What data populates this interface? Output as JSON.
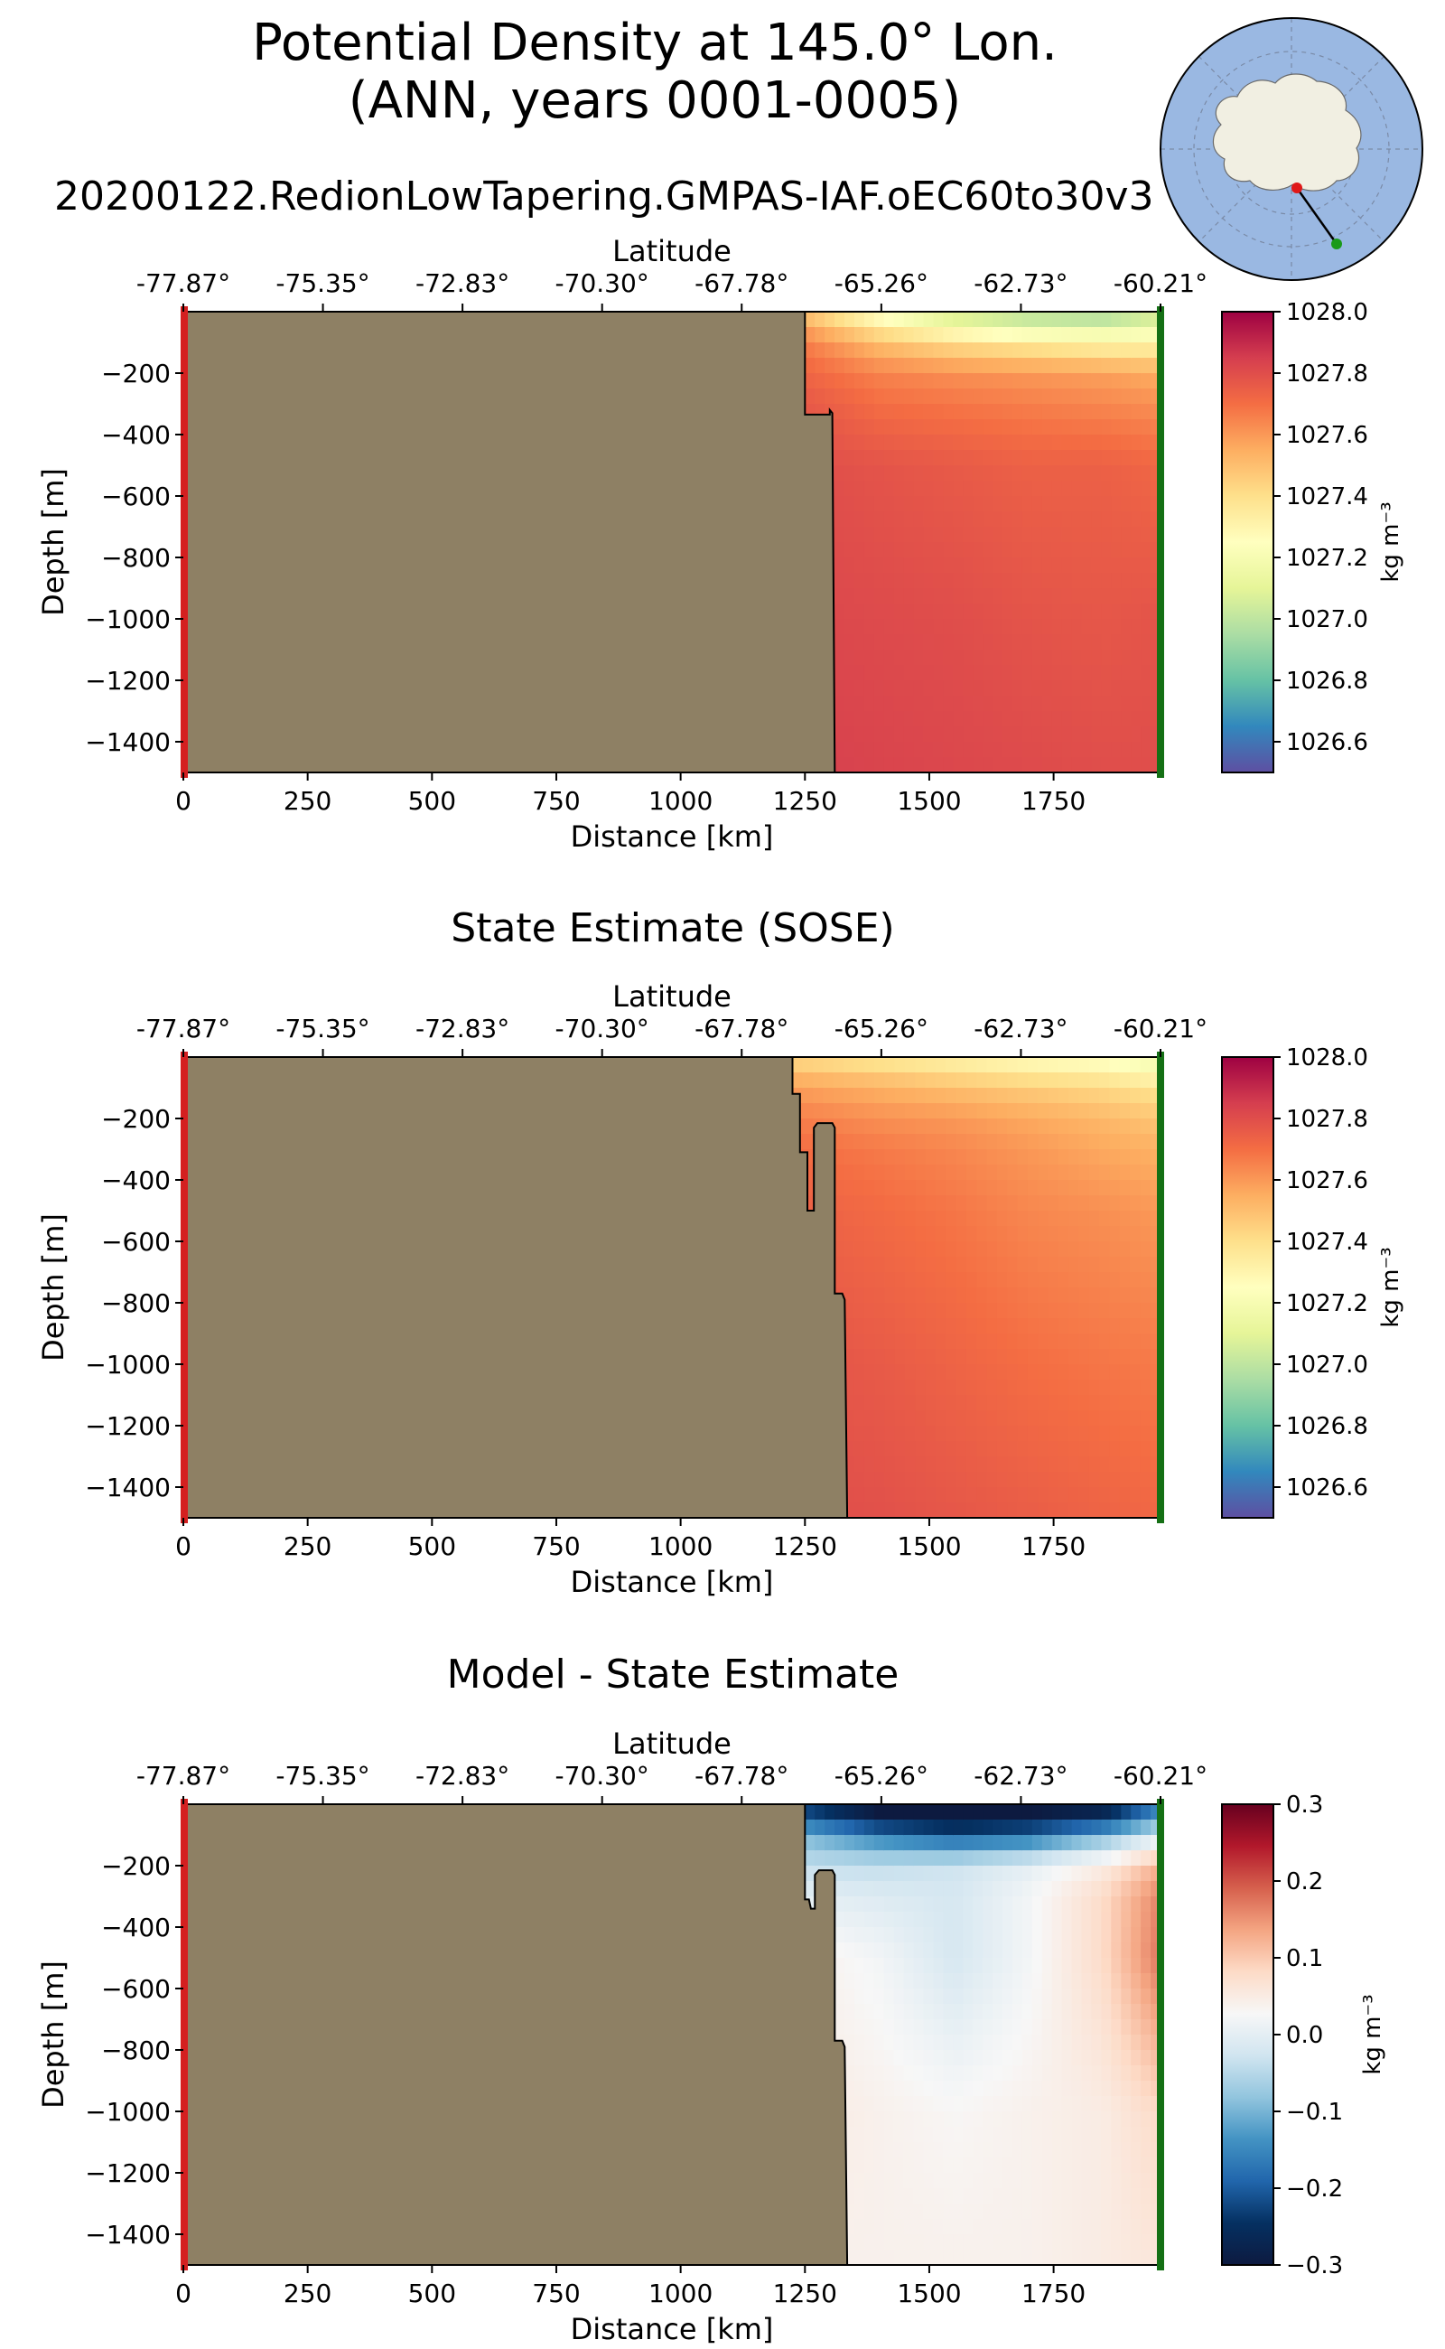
{
  "figure": {
    "title_line1": "Potential Density at 145.0° Lon.",
    "title_line2": "(ANN, years 0001-0005)",
    "run_name": "20200122.RedionLowTapering.GMPAS-IAF.oEC60to30v3"
  },
  "colors": {
    "land": "#8e8064",
    "start_marker": "#d42020",
    "end_marker": "#157015",
    "globe_ocean": "#9ab8e2",
    "globe_land": "#f1efe2"
  },
  "shared_axes": {
    "xlabel": "Distance [km]",
    "ylabel": "Depth [m]",
    "top_label": "Latitude",
    "xlim": [
      0,
      1965
    ],
    "ylim": [
      -1500,
      0
    ],
    "xticks": [
      0,
      250,
      500,
      750,
      1000,
      1250,
      1500,
      1750
    ],
    "yticks": [
      -200,
      -400,
      -600,
      -800,
      -1000,
      -1200,
      -1400
    ],
    "lat_tick_km": [
      0,
      280.7,
      561.4,
      842.1,
      1122.8,
      1403.6,
      1684.3,
      1965
    ],
    "lat_tick_labels": [
      "-77.87°",
      "-75.35°",
      "-72.83°",
      "-70.30°",
      "-67.78°",
      "-65.26°",
      "-62.73°",
      "-60.21°"
    ]
  },
  "chart_data": [
    {
      "type": "heatmap",
      "title": "",
      "xlabel": "Distance [km]",
      "ylabel": "Depth [m]",
      "top_axis_label": "Latitude",
      "colorbar_label": "kg m⁻³",
      "colormap": "Spectral_r",
      "clim": [
        1026.5,
        1028.0
      ],
      "colorbar_ticks": [
        1026.6,
        1026.8,
        1027.0,
        1027.2,
        1027.4,
        1027.6,
        1027.8,
        1028.0
      ],
      "grid": false,
      "land_boundary_km_depth": [
        [
          1250,
          0
        ],
        [
          1250,
          -335
        ],
        [
          1300,
          -335
        ],
        [
          1300,
          -320
        ],
        [
          1305,
          -330
        ],
        [
          1310,
          -1500
        ]
      ],
      "values": {
        "x_km": [
          1260,
          1400,
          1550,
          1700,
          1850,
          1960
        ],
        "depth_m": [
          0,
          -50,
          -100,
          -200,
          -300,
          -500,
          -1000,
          -1500
        ],
        "density": [
          [
            1027.45,
            1027.2,
            1027.0,
            1026.95,
            1026.9,
            1027.0
          ],
          [
            1027.55,
            1027.35,
            1027.2,
            1027.1,
            1027.1,
            1027.15
          ],
          [
            1027.65,
            1027.5,
            1027.4,
            1027.35,
            1027.3,
            1027.3
          ],
          [
            1027.72,
            1027.65,
            1027.62,
            1027.6,
            1027.58,
            1027.55
          ],
          [
            1027.76,
            1027.7,
            1027.68,
            1027.66,
            1027.64,
            1027.62
          ],
          [
            1027.8,
            1027.78,
            1027.76,
            1027.74,
            1027.74,
            1027.72
          ],
          [
            1027.82,
            1027.81,
            1027.8,
            1027.78,
            1027.77,
            1027.78
          ],
          [
            1027.84,
            1027.83,
            1027.82,
            1027.81,
            1027.8,
            1027.8
          ]
        ]
      }
    },
    {
      "type": "heatmap",
      "title": "State Estimate (SOSE)",
      "xlabel": "Distance [km]",
      "ylabel": "Depth [m]",
      "top_axis_label": "Latitude",
      "colorbar_label": "kg m⁻³",
      "colormap": "Spectral_r",
      "clim": [
        1026.5,
        1028.0
      ],
      "colorbar_ticks": [
        1026.6,
        1026.8,
        1027.0,
        1027.2,
        1027.4,
        1027.6,
        1027.8,
        1028.0
      ],
      "grid": false,
      "land_boundary_km_depth": [
        [
          1225,
          0
        ],
        [
          1225,
          -120
        ],
        [
          1240,
          -120
        ],
        [
          1240,
          -310
        ],
        [
          1255,
          -310
        ],
        [
          1255,
          -500
        ],
        [
          1268,
          -500
        ],
        [
          1268,
          -230
        ],
        [
          1275,
          -215
        ],
        [
          1305,
          -215
        ],
        [
          1310,
          -230
        ],
        [
          1310,
          -770
        ],
        [
          1325,
          -770
        ],
        [
          1330,
          -790
        ],
        [
          1335,
          -1500
        ]
      ],
      "values": {
        "x_km": [
          1240,
          1400,
          1550,
          1700,
          1850,
          1960
        ],
        "depth_m": [
          0,
          -50,
          -100,
          -200,
          -300,
          -500,
          -1000,
          -1500
        ],
        "density": [
          [
            1027.4,
            1027.35,
            1027.3,
            1027.25,
            1027.22,
            1027.15
          ],
          [
            1027.5,
            1027.45,
            1027.4,
            1027.35,
            1027.32,
            1027.25
          ],
          [
            1027.58,
            1027.54,
            1027.5,
            1027.46,
            1027.42,
            1027.38
          ],
          [
            1027.66,
            1027.62,
            1027.6,
            1027.56,
            1027.52,
            1027.48
          ],
          [
            1027.7,
            1027.67,
            1027.64,
            1027.6,
            1027.56,
            1027.54
          ],
          [
            1027.74,
            1027.71,
            1027.68,
            1027.64,
            1027.62,
            1027.6
          ],
          [
            1027.78,
            1027.76,
            1027.73,
            1027.7,
            1027.68,
            1027.67
          ],
          [
            1027.8,
            1027.79,
            1027.77,
            1027.75,
            1027.73,
            1027.72
          ]
        ]
      }
    },
    {
      "type": "heatmap",
      "title": "Model - State Estimate",
      "xlabel": "Distance [km]",
      "ylabel": "Depth [m]",
      "top_axis_label": "Latitude",
      "colorbar_label": "kg m⁻³",
      "colormap": "RdBu_r",
      "clim": [
        -0.3,
        0.3
      ],
      "colorbar_ticks": [
        -0.3,
        -0.2,
        -0.1,
        0.0,
        0.1,
        0.2,
        0.3
      ],
      "grid": false,
      "land_boundary_km_depth": [
        [
          1250,
          0
        ],
        [
          1250,
          -310
        ],
        [
          1258,
          -310
        ],
        [
          1262,
          -340
        ],
        [
          1270,
          -340
        ],
        [
          1270,
          -230
        ],
        [
          1278,
          -215
        ],
        [
          1305,
          -215
        ],
        [
          1310,
          -230
        ],
        [
          1310,
          -770
        ],
        [
          1325,
          -770
        ],
        [
          1330,
          -790
        ],
        [
          1335,
          -1500
        ]
      ],
      "values": {
        "x_km": [
          1260,
          1400,
          1550,
          1700,
          1850,
          1960
        ],
        "depth_m": [
          0,
          -50,
          -100,
          -200,
          -300,
          -500,
          -1000,
          -1500
        ],
        "difference": [
          [
            -0.25,
            -0.32,
            -0.33,
            -0.32,
            -0.3,
            -0.18
          ],
          [
            -0.2,
            -0.28,
            -0.3,
            -0.28,
            -0.24,
            -0.12
          ],
          [
            -0.1,
            -0.16,
            -0.2,
            -0.18,
            -0.1,
            -0.02
          ],
          [
            -0.04,
            -0.04,
            -0.03,
            0.0,
            0.05,
            0.12
          ],
          [
            0.0,
            -0.01,
            -0.02,
            0.02,
            0.08,
            0.16
          ],
          [
            0.04,
            0.02,
            -0.02,
            0.02,
            0.08,
            0.17
          ],
          [
            0.05,
            0.04,
            0.03,
            0.04,
            0.05,
            0.08
          ],
          [
            0.04,
            0.04,
            0.04,
            0.04,
            0.05,
            0.06
          ]
        ]
      }
    }
  ]
}
